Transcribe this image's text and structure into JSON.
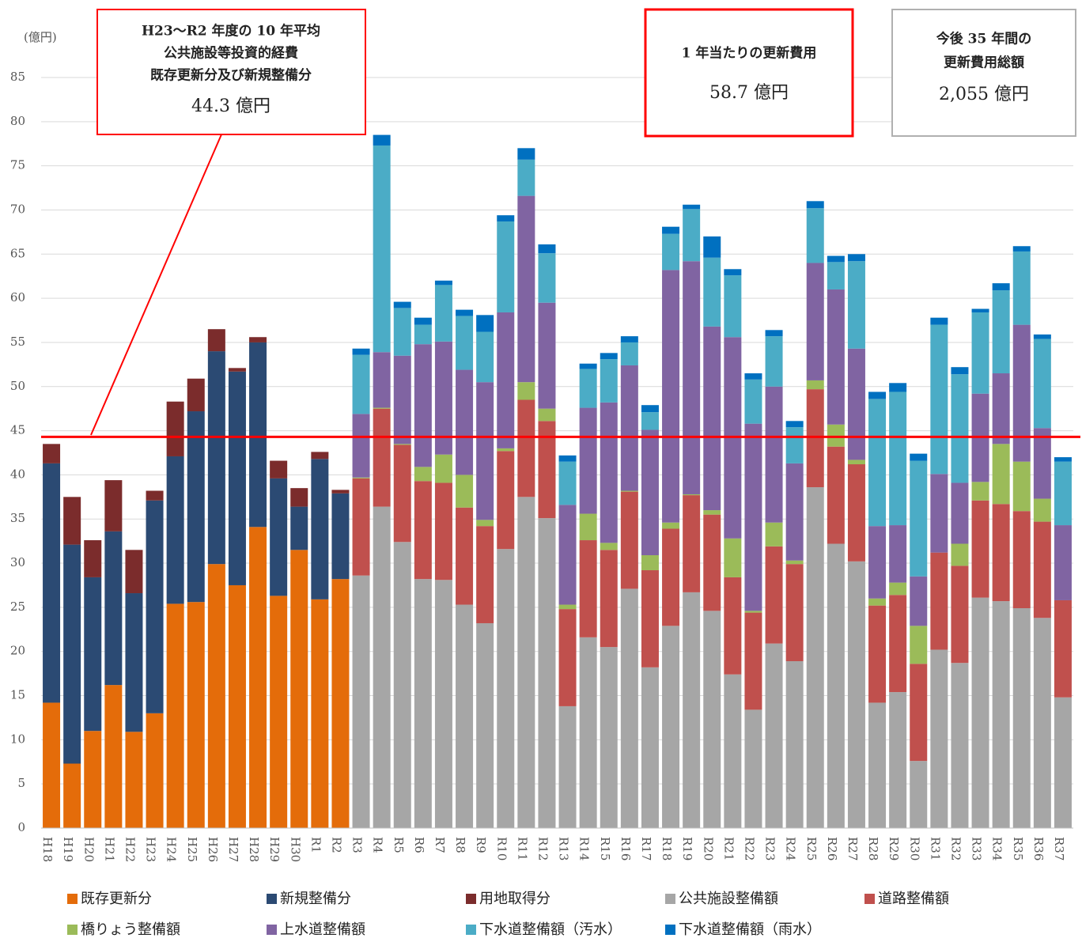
{
  "chart_data": {
    "type": "stacked_bar",
    "y_label": "(億円)",
    "categories": [
      "H18",
      "H19",
      "H20",
      "H21",
      "H22",
      "H23",
      "H24",
      "H25",
      "H26",
      "H27",
      "H28",
      "H29",
      "H30",
      "R1",
      "R2",
      "R3",
      "R4",
      "R5",
      "R6",
      "R7",
      "R8",
      "R9",
      "R10",
      "R11",
      "R12",
      "R13",
      "R14",
      "R15",
      "R16",
      "R17",
      "R18",
      "R19",
      "R20",
      "R21",
      "R22",
      "R23",
      "R24",
      "R25",
      "R26",
      "R27",
      "R28",
      "R29",
      "R30",
      "R31",
      "R32",
      "R33",
      "R34",
      "R35",
      "R36",
      "R37"
    ],
    "series": [
      {
        "name": "既存更新分",
        "color": "#e46c0a",
        "values": [
          14.2,
          7.3,
          11.0,
          16.2,
          10.9,
          13.0,
          25.4,
          25.6,
          29.9,
          27.5,
          34.1,
          26.3,
          31.5,
          25.9,
          28.2,
          null,
          null,
          null,
          null,
          null,
          null,
          null,
          null,
          null,
          null,
          null,
          null,
          null,
          null,
          null,
          null,
          null,
          null,
          null,
          null,
          null,
          null,
          null,
          null,
          null,
          null,
          null,
          null,
          null,
          null,
          null,
          null,
          null,
          null,
          null
        ]
      },
      {
        "name": "新規整備分",
        "color": "#2b4a73",
        "values": [
          27.1,
          24.8,
          17.4,
          17.4,
          15.7,
          24.1,
          16.7,
          21.6,
          24.1,
          24.2,
          20.9,
          13.3,
          4.9,
          15.9,
          9.7,
          null,
          null,
          null,
          null,
          null,
          null,
          null,
          null,
          null,
          null,
          null,
          null,
          null,
          null,
          null,
          null,
          null,
          null,
          null,
          null,
          null,
          null,
          null,
          null,
          null,
          null,
          null,
          null,
          null,
          null,
          null,
          null,
          null,
          null,
          null
        ]
      },
      {
        "name": "用地取得分",
        "color": "#7b2c2c",
        "values": [
          2.2,
          5.4,
          4.2,
          5.8,
          4.9,
          1.1,
          6.2,
          3.7,
          2.5,
          0.4,
          0.6,
          2.0,
          2.1,
          0.8,
          0.4,
          null,
          null,
          null,
          null,
          null,
          null,
          null,
          null,
          null,
          null,
          null,
          null,
          null,
          null,
          null,
          null,
          null,
          null,
          null,
          null,
          null,
          null,
          null,
          null,
          null,
          null,
          null,
          null,
          null,
          null,
          null,
          null,
          null,
          null,
          null
        ]
      },
      {
        "name": "公共施設整備額",
        "color": "#a6a6a6",
        "values": [
          null,
          null,
          null,
          null,
          null,
          null,
          null,
          null,
          null,
          null,
          null,
          null,
          null,
          null,
          null,
          28.6,
          36.4,
          32.4,
          28.2,
          28.1,
          25.3,
          23.2,
          31.6,
          37.5,
          35.1,
          13.8,
          21.6,
          20.5,
          27.1,
          18.2,
          22.9,
          26.7,
          24.6,
          17.4,
          13.4,
          20.9,
          18.9,
          38.6,
          32.2,
          30.2,
          14.2,
          15.4,
          7.6,
          20.2,
          18.7,
          26.1,
          25.7,
          24.9,
          23.8,
          14.8
        ]
      },
      {
        "name": "道路整備額",
        "color": "#c0504d",
        "values": [
          null,
          null,
          null,
          null,
          null,
          null,
          null,
          null,
          null,
          null,
          null,
          null,
          null,
          null,
          null,
          11.0,
          11.1,
          11.0,
          11.1,
          11.0,
          11.0,
          11.0,
          11.1,
          11.0,
          11.0,
          11.0,
          11.0,
          11.0,
          11.0,
          11.0,
          11.0,
          11.0,
          10.9,
          11.0,
          11.0,
          11.0,
          11.0,
          11.1,
          11.0,
          11.0,
          11.0,
          11.0,
          11.0,
          11.0,
          11.0,
          11.0,
          11.0,
          11.0,
          10.9,
          11.0
        ]
      },
      {
        "name": "橋りょう整備額",
        "color": "#9bbb59",
        "values": [
          null,
          null,
          null,
          null,
          null,
          null,
          null,
          null,
          null,
          null,
          null,
          null,
          null,
          null,
          null,
          0.1,
          0.1,
          0.1,
          1.6,
          3.2,
          3.7,
          0.7,
          0.3,
          2.0,
          1.4,
          0.5,
          3.0,
          0.8,
          0.1,
          1.7,
          0.7,
          0.1,
          0.5,
          4.4,
          0.2,
          2.7,
          0.4,
          1.0,
          2.5,
          0.5,
          0.8,
          1.4,
          4.3,
          0,
          2.5,
          2.1,
          6.8,
          5.6,
          2.6,
          0
        ]
      },
      {
        "name": "上水道整備額",
        "color": "#8064a2",
        "values": [
          null,
          null,
          null,
          null,
          null,
          null,
          null,
          null,
          null,
          null,
          null,
          null,
          null,
          null,
          null,
          7.2,
          6.3,
          10.0,
          13.9,
          12.8,
          11.9,
          15.6,
          15.4,
          21.1,
          12.0,
          11.3,
          12.0,
          15.9,
          14.2,
          14.2,
          28.6,
          26.4,
          20.8,
          22.8,
          21.2,
          15.4,
          11.0,
          13.3,
          15.3,
          12.6,
          8.2,
          6.5,
          5.6,
          8.9,
          6.9,
          10.0,
          8.0,
          15.5,
          8.0,
          8.5
        ]
      },
      {
        "name": "下水道整備額（汚水）",
        "color": "#4bacc6",
        "values": [
          null,
          null,
          null,
          null,
          null,
          null,
          null,
          null,
          null,
          null,
          null,
          null,
          null,
          null,
          null,
          6.7,
          23.4,
          5.4,
          2.2,
          6.4,
          6.1,
          5.7,
          10.3,
          4.1,
          5.6,
          4.9,
          4.4,
          4.9,
          2.6,
          2.0,
          4.1,
          5.9,
          7.8,
          7.0,
          5.0,
          5.7,
          4.1,
          6.2,
          3.1,
          9.9,
          14.4,
          15.1,
          13.1,
          16.9,
          12.3,
          9.2,
          9.4,
          8.3,
          10.1,
          7.2
        ]
      },
      {
        "name": "下水道整備額（雨水）",
        "color": "#0070c0",
        "values": [
          null,
          null,
          null,
          null,
          null,
          null,
          null,
          null,
          null,
          null,
          null,
          null,
          null,
          null,
          null,
          0.7,
          1.2,
          0.7,
          0.8,
          0.5,
          0.7,
          1.9,
          0.7,
          1.3,
          1.0,
          0.7,
          0.6,
          0.7,
          0.7,
          0.8,
          0.8,
          0.5,
          2.4,
          0.7,
          0.7,
          0.7,
          0.7,
          0.8,
          0.7,
          0.8,
          0.8,
          1.0,
          0.8,
          0.8,
          0.8,
          0.4,
          0.8,
          0.6,
          0.5,
          0.5
        ]
      }
    ],
    "ylim": [
      0,
      85
    ],
    "yticks": [
      0,
      5,
      10,
      15,
      20,
      25,
      30,
      35,
      40,
      45,
      50,
      55,
      60,
      65,
      70,
      75,
      80,
      85
    ],
    "grid": true,
    "reference_line": {
      "value": 44.3,
      "color": "#ff0000"
    },
    "annotations": [
      {
        "lines": [
          "H23～R2 年度の 10 年平均",
          "公共施設等投資的経費",
          "既存更新分及び新規整備分",
          "44.3 億円"
        ]
      },
      {
        "lines": [
          "1 年当たりの更新費用",
          "58.7 億円"
        ]
      },
      {
        "lines": [
          "今後 35 年間の",
          "更新費用総額",
          "2,055 億円"
        ]
      }
    ]
  }
}
